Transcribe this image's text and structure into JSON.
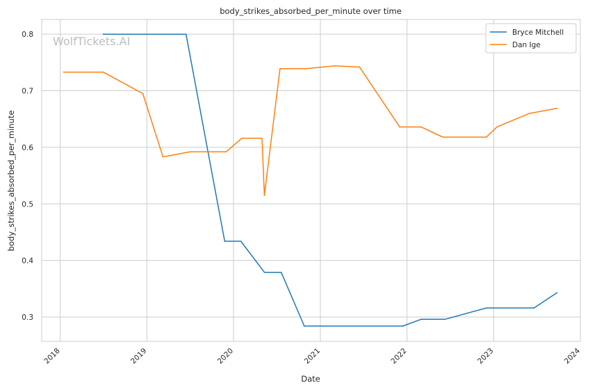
{
  "watermark": "WolfTickets.AI",
  "chart_data": {
    "type": "line",
    "title": "body_strikes_absorbed_per_minute over time",
    "xlabel": "Date",
    "ylabel": "body_strikes_absorbed_per_minute",
    "xlim": [
      "2017-10-15",
      "2024-01-01"
    ],
    "ylim": [
      0.257,
      0.826
    ],
    "x_ticks": [
      "2018",
      "2019",
      "2020",
      "2021",
      "2022",
      "2023",
      "2024"
    ],
    "y_ticks": [
      0.3,
      0.4,
      0.5,
      0.6,
      0.7,
      0.8
    ],
    "grid": true,
    "legend_position": "top-right",
    "series": [
      {
        "name": "Bryce Mitchell",
        "color": "#1f77b4",
        "points": [
          [
            "2018-07-01",
            0.8
          ],
          [
            "2019-06-15",
            0.8
          ],
          [
            "2019-11-25",
            0.434
          ],
          [
            "2020-02-01",
            0.434
          ],
          [
            "2020-05-10",
            0.379
          ],
          [
            "2020-07-20",
            0.379
          ],
          [
            "2020-10-25",
            0.284
          ],
          [
            "2021-12-15",
            0.284
          ],
          [
            "2022-03-01",
            0.296
          ],
          [
            "2022-06-10",
            0.296
          ],
          [
            "2022-12-01",
            0.316
          ],
          [
            "2023-06-20",
            0.316
          ],
          [
            "2023-09-25",
            0.343
          ]
        ]
      },
      {
        "name": "Dan Ige",
        "color": "#ff7f0e",
        "points": [
          [
            "2018-01-15",
            0.733
          ],
          [
            "2018-07-01",
            0.733
          ],
          [
            "2018-12-15",
            0.695
          ],
          [
            "2019-03-10",
            0.583
          ],
          [
            "2019-07-01",
            0.592
          ],
          [
            "2019-12-01",
            0.592
          ],
          [
            "2020-02-05",
            0.616
          ],
          [
            "2020-04-30",
            0.616
          ],
          [
            "2020-05-10",
            0.515
          ],
          [
            "2020-07-15",
            0.739
          ],
          [
            "2020-11-01",
            0.739
          ],
          [
            "2021-03-01",
            0.744
          ],
          [
            "2021-06-15",
            0.742
          ],
          [
            "2021-12-01",
            0.636
          ],
          [
            "2022-03-01",
            0.636
          ],
          [
            "2022-06-01",
            0.618
          ],
          [
            "2022-12-01",
            0.618
          ],
          [
            "2023-01-15",
            0.636
          ],
          [
            "2023-06-01",
            0.66
          ],
          [
            "2023-09-25",
            0.669
          ]
        ]
      }
    ]
  }
}
